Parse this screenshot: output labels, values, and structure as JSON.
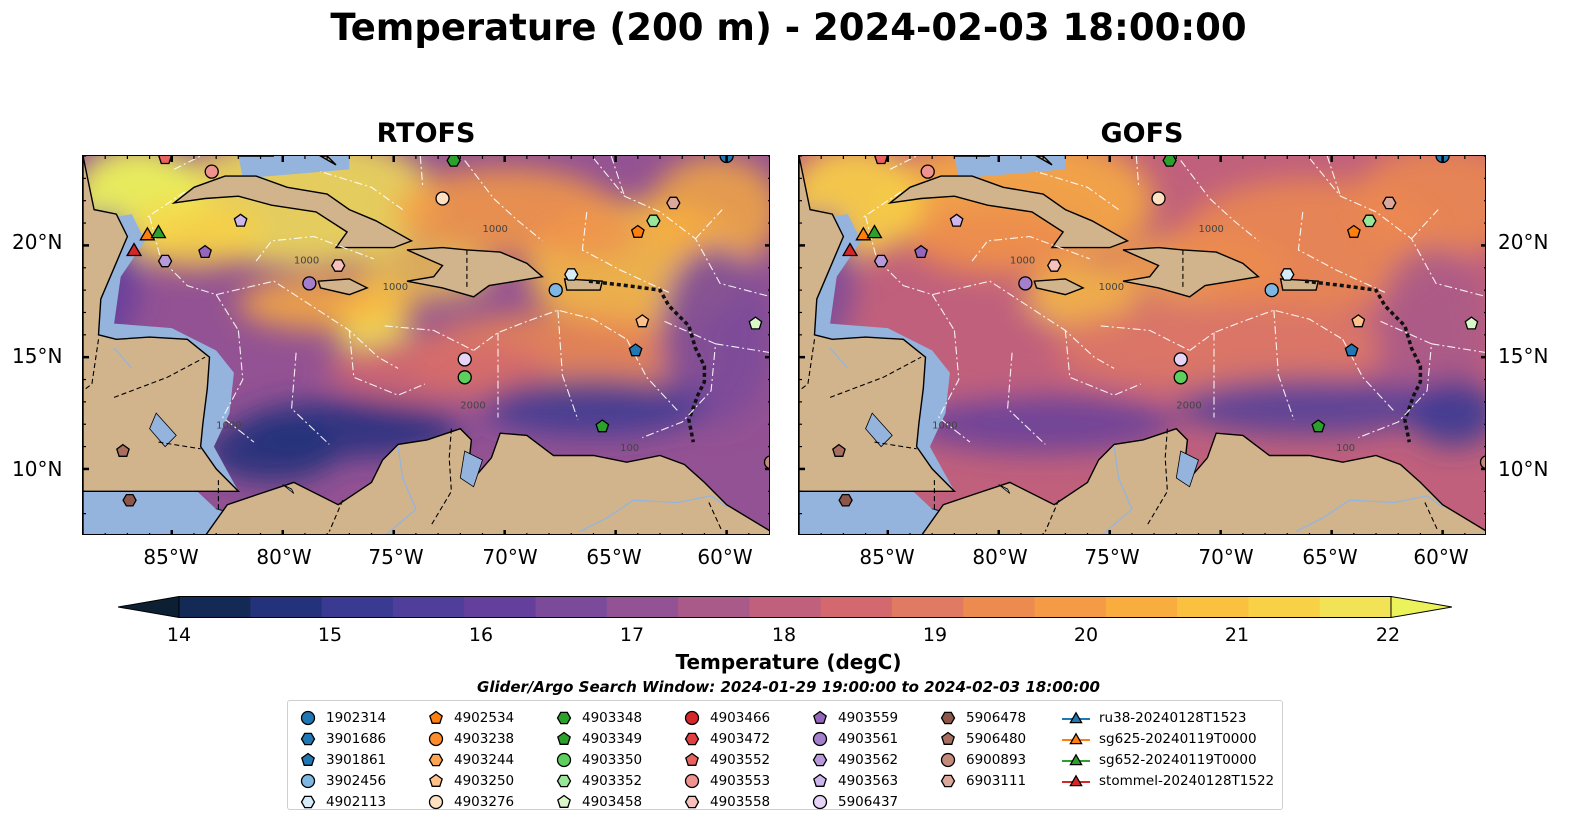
{
  "title": "Temperature (200 m) - 2024-02-03 18:00:00",
  "panels": [
    {
      "title": "RTOFS",
      "variant": "rtofs"
    },
    {
      "title": "GOFS",
      "variant": "gofs"
    }
  ],
  "lat_labels": [
    "20°N",
    "15°N",
    "10°N"
  ],
  "lon_labels": [
    "85°W",
    "80°W",
    "75°W",
    "70°W",
    "65°W",
    "60°W"
  ],
  "colorbar": {
    "label": "Temperature (degC)",
    "ticks": [
      "14",
      "15",
      "16",
      "17",
      "18",
      "19",
      "20",
      "21",
      "22"
    ],
    "colors": [
      "#0d2033",
      "#122a55",
      "#23327a",
      "#3a3a93",
      "#503f9a",
      "#653f9c",
      "#7c4a9a",
      "#935293",
      "#a95a88",
      "#c0607c",
      "#d3696e",
      "#e07a62",
      "#ec8a50",
      "#f59a45",
      "#f8ad3e",
      "#fac03f",
      "#f8d146",
      "#f2e256",
      "#ecf25b"
    ]
  },
  "search_window": "Glider/Argo Search Window: 2024-01-29 19:00:00 to 2024-02-03 18:00:00",
  "legend": {
    "columns": [
      [
        {
          "label": "1902314",
          "shape": "circle",
          "color": "#1f77b4"
        },
        {
          "label": "3901686",
          "shape": "hexagon",
          "color": "#1f77b4"
        },
        {
          "label": "3901861",
          "shape": "pentagon",
          "color": "#1f77b4"
        },
        {
          "label": "3902456",
          "shape": "circle",
          "color": "#7fb7e3"
        },
        {
          "label": "4902113",
          "shape": "hexagon",
          "color": "#d6ecf8"
        }
      ],
      [
        {
          "label": "4902534",
          "shape": "pentagon",
          "color": "#ff7f0e"
        },
        {
          "label": "4903238",
          "shape": "circle",
          "color": "#ff8c2a"
        },
        {
          "label": "4903244",
          "shape": "hexagon",
          "color": "#ffa552"
        },
        {
          "label": "4903250",
          "shape": "pentagon",
          "color": "#ffc08a"
        },
        {
          "label": "4903276",
          "shape": "circle",
          "color": "#ffe0c0"
        }
      ],
      [
        {
          "label": "4903348",
          "shape": "hexagon",
          "color": "#2ca02c"
        },
        {
          "label": "4903349",
          "shape": "pentagon",
          "color": "#2ca02c"
        },
        {
          "label": "4903350",
          "shape": "circle",
          "color": "#5ccf5c"
        },
        {
          "label": "4903352",
          "shape": "hexagon",
          "color": "#98e698"
        },
        {
          "label": "4903458",
          "shape": "pentagon",
          "color": "#d9f7c8"
        }
      ],
      [
        {
          "label": "4903466",
          "shape": "circle",
          "color": "#d62728"
        },
        {
          "label": "4903472",
          "shape": "hexagon",
          "color": "#e0403f"
        },
        {
          "label": "4903552",
          "shape": "pentagon",
          "color": "#e8625f"
        },
        {
          "label": "4903553",
          "shape": "circle",
          "color": "#f0938f"
        },
        {
          "label": "4903558",
          "shape": "hexagon",
          "color": "#f8c0bd"
        }
      ],
      [
        {
          "label": "4903559",
          "shape": "pentagon",
          "color": "#9467bd"
        },
        {
          "label": "4903561",
          "shape": "circle",
          "color": "#a47fcc"
        },
        {
          "label": "4903562",
          "shape": "hexagon",
          "color": "#b89adb"
        },
        {
          "label": "4903563",
          "shape": "pentagon",
          "color": "#cdb6ea"
        },
        {
          "label": "5906437",
          "shape": "circle",
          "color": "#e6d4f7"
        }
      ],
      [
        {
          "label": "5906478",
          "shape": "hexagon",
          "color": "#8c564b"
        },
        {
          "label": "5906480",
          "shape": "pentagon",
          "color": "#a86e60"
        },
        {
          "label": "6900893",
          "shape": "circle",
          "color": "#c48a7b"
        },
        {
          "label": "6903111",
          "shape": "hexagon",
          "color": "#dba89b"
        }
      ],
      [
        {
          "label": "ru38-20240128T1523",
          "shape": "triangle-line",
          "color": "#1f77b4"
        },
        {
          "label": "sg625-20240119T0000",
          "shape": "triangle-line",
          "color": "#ff7f0e"
        },
        {
          "label": "sg652-20240119T0000",
          "shape": "triangle-line",
          "color": "#2ca02c"
        },
        {
          "label": "stommel-20240128T1522",
          "shape": "triangle-line",
          "color": "#d62728"
        }
      ]
    ]
  },
  "markers": [
    {
      "id": "1902314",
      "shape": "circle",
      "color": "#1f77b4",
      "lon": -60.0,
      "lat": 24.0
    },
    {
      "id": "3902456",
      "shape": "circle",
      "color": "#7fb7e3",
      "lon": -67.7,
      "lat": 18.0
    },
    {
      "id": "4902113",
      "shape": "hexagon",
      "color": "#d6ecf8",
      "lon": -67.0,
      "lat": 18.7
    },
    {
      "id": "4902534",
      "shape": "pentagon",
      "color": "#ff7f0e",
      "lon": -64.0,
      "lat": 20.6
    },
    {
      "id": "4903276",
      "shape": "circle",
      "color": "#ffe0c0",
      "lon": -72.8,
      "lat": 22.1
    },
    {
      "id": "4903250",
      "shape": "pentagon",
      "color": "#ffc08a",
      "lon": -63.8,
      "lat": 16.6
    },
    {
      "id": "3901861",
      "shape": "pentagon",
      "color": "#1f77b4",
      "lon": -64.1,
      "lat": 15.3
    },
    {
      "id": "4903348",
      "shape": "hexagon",
      "color": "#2ca02c",
      "lon": -72.3,
      "lat": 23.8
    },
    {
      "id": "4903349",
      "shape": "pentagon",
      "color": "#2ca02c",
      "lon": -65.6,
      "lat": 11.9
    },
    {
      "id": "4903350",
      "shape": "circle",
      "color": "#5ccf5c",
      "lon": -71.8,
      "lat": 14.1
    },
    {
      "id": "4903352",
      "shape": "hexagon",
      "color": "#98e698",
      "lon": -63.3,
      "lat": 21.1
    },
    {
      "id": "4903458",
      "shape": "pentagon",
      "color": "#d9f7c8",
      "lon": -58.7,
      "lat": 16.5
    },
    {
      "id": "4903553",
      "shape": "circle",
      "color": "#f0938f",
      "lon": -83.2,
      "lat": 23.3
    },
    {
      "id": "4903558",
      "shape": "hexagon",
      "color": "#f8c0bd",
      "lon": -77.5,
      "lat": 19.1
    },
    {
      "id": "4903559",
      "shape": "pentagon",
      "color": "#9467bd",
      "lon": -83.5,
      "lat": 19.7
    },
    {
      "id": "4903561",
      "shape": "circle",
      "color": "#a47fcc",
      "lon": -78.8,
      "lat": 18.3
    },
    {
      "id": "4903562",
      "shape": "hexagon",
      "color": "#b89adb",
      "lon": -85.3,
      "lat": 19.3
    },
    {
      "id": "4903563",
      "shape": "pentagon",
      "color": "#cdb6ea",
      "lon": -81.9,
      "lat": 21.1
    },
    {
      "id": "5906437",
      "shape": "circle",
      "color": "#e6d4f7",
      "lon": -71.8,
      "lat": 14.9
    },
    {
      "id": "5906478",
      "shape": "hexagon",
      "color": "#8c564b",
      "lon": -86.9,
      "lat": 8.6
    },
    {
      "id": "5906480",
      "shape": "pentagon",
      "color": "#a86e60",
      "lon": -87.2,
      "lat": 10.8
    },
    {
      "id": "6900893",
      "shape": "circle",
      "color": "#c48a7b",
      "lon": -58.0,
      "lat": 10.3
    },
    {
      "id": "6903111",
      "shape": "hexagon",
      "color": "#dba89b",
      "lon": -62.4,
      "lat": 21.9
    },
    {
      "id": "4903552",
      "shape": "pentagon",
      "color": "#e8625f",
      "lon": -85.3,
      "lat": 23.9
    },
    {
      "id": "sg625-20240119T0000",
      "shape": "triangle",
      "color": "#ff7f0e",
      "lon": -86.1,
      "lat": 20.5
    },
    {
      "id": "sg652-20240119T0000",
      "shape": "triangle",
      "color": "#2ca02c",
      "lon": -85.6,
      "lat": 20.6
    },
    {
      "id": "stommel-20240128T1522",
      "shape": "triangle",
      "color": "#d62728",
      "lon": -86.7,
      "lat": 19.8
    }
  ]
}
